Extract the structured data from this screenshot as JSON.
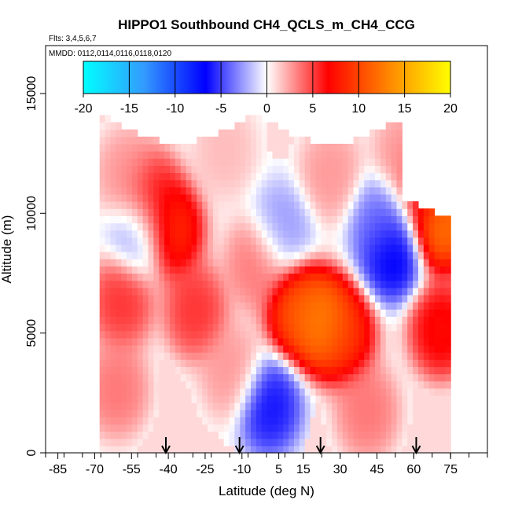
{
  "chart_data": {
    "type": "heatmap",
    "title": "HIPPO1 Southbound CH4_QCLS_m_CH4_CCG",
    "flights_label": "Flts: 3,4,5,6,7",
    "mmdd_label": "MMDD: 0112,0114,0116,0118,0120",
    "xlabel": "Latitude (deg N)",
    "ylabel": "Altitude (m)",
    "xlim": [
      -90,
      90
    ],
    "ylim": [
      0,
      17000
    ],
    "x_ticks": [
      -85,
      -70,
      -55,
      -40,
      -25,
      -10,
      5,
      15,
      30,
      45,
      60,
      75
    ],
    "x_tick_labels": [
      "-85",
      "-70",
      "-55",
      "-40",
      "-25",
      "-10",
      "5",
      "15",
      "30",
      "45",
      "60",
      "75"
    ],
    "y_ticks": [
      0,
      5000,
      10000,
      15000
    ],
    "y_tick_labels": [
      "0",
      "5000",
      "10000",
      "15000"
    ],
    "colorbar": {
      "range": [
        -20,
        20
      ],
      "ticks": [
        -20,
        -15,
        -10,
        -5,
        0,
        5,
        10,
        15,
        20
      ],
      "tick_labels": [
        "-20",
        "-15",
        "-10",
        "-5",
        "0",
        "5",
        "10",
        "15",
        "20"
      ],
      "colors": [
        "#00ffff",
        "#3399ff",
        "#0000ff",
        "#ffffff",
        "#ff0000",
        "#ff8800",
        "#ffff00"
      ]
    },
    "profile_markers_lat": [
      -41,
      -11,
      22,
      61
    ],
    "data_extent": {
      "lat": [
        -68,
        75
      ],
      "alt": [
        0,
        14000
      ]
    },
    "features": [
      {
        "lat": -58,
        "alt": 11500,
        "value": 3
      },
      {
        "lat": -40,
        "alt": 9200,
        "value": 10
      },
      {
        "lat": -48,
        "alt": 10500,
        "value": 7
      },
      {
        "lat": -18,
        "alt": 12500,
        "value": 2
      },
      {
        "lat": 22,
        "alt": 5300,
        "value": 15
      },
      {
        "lat": 12,
        "alt": 5800,
        "value": 12
      },
      {
        "lat": 30,
        "alt": 4800,
        "value": 10
      },
      {
        "lat": -30,
        "alt": 5800,
        "value": 6
      },
      {
        "lat": -15,
        "alt": 3200,
        "value": 3
      },
      {
        "lat": 70,
        "alt": 9500,
        "value": 14
      },
      {
        "lat": 63,
        "alt": 11000,
        "value": 6
      },
      {
        "lat": 50,
        "alt": 8200,
        "value": -8
      },
      {
        "lat": 45,
        "alt": 9500,
        "value": -4
      },
      {
        "lat": 5,
        "alt": 9200,
        "value": -3
      },
      {
        "lat": 0,
        "alt": 1800,
        "value": -7
      },
      {
        "lat": -53,
        "alt": 9000,
        "value": -3
      },
      {
        "lat": 40,
        "alt": 1600,
        "value": 4
      },
      {
        "lat": -60,
        "alt": 6200,
        "value": 6
      },
      {
        "lat": 70,
        "alt": 5000,
        "value": 8
      },
      {
        "lat": -62,
        "alt": 2500,
        "value": 4
      },
      {
        "lat": 55,
        "alt": 12300,
        "value": 3
      },
      {
        "lat": 25,
        "alt": 11500,
        "value": 3
      },
      {
        "lat": -5,
        "alt": 7800,
        "value": 4
      }
    ]
  }
}
